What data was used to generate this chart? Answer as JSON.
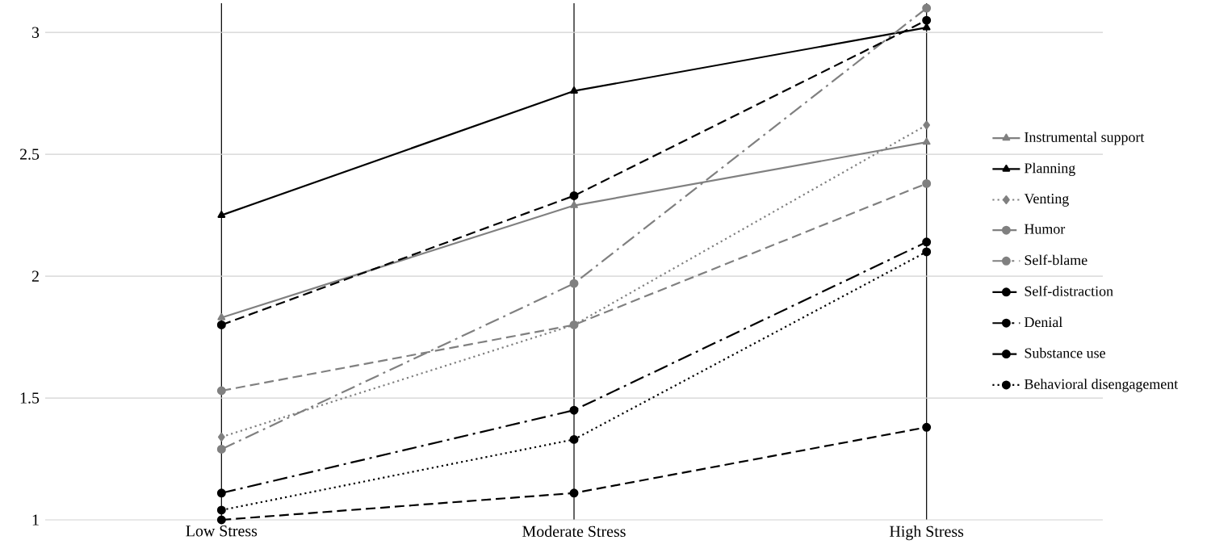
{
  "chart_data": {
    "type": "line",
    "categories": [
      "Low Stress",
      "Moderate Stress",
      "High Stress"
    ],
    "ylim": [
      1,
      3.12
    ],
    "yticks": [
      1,
      1.5,
      2,
      2.5,
      3
    ],
    "grid": true,
    "legend": "right",
    "series": [
      {
        "name": "Instrumental support",
        "color": "#808080",
        "marker": "triangle",
        "line_style": "solid",
        "values": [
          1.83,
          2.29,
          2.55
        ]
      },
      {
        "name": "Planning",
        "color": "#000000",
        "marker": "triangle",
        "line_style": "solid",
        "values": [
          2.25,
          2.76,
          3.02
        ]
      },
      {
        "name": "Venting",
        "color": "#808080",
        "marker": "diamond",
        "line_style": "dotted",
        "values": [
          1.34,
          1.8,
          2.62
        ]
      },
      {
        "name": "Humor",
        "color": "#808080",
        "marker": "circle",
        "line_style": "dashed",
        "values": [
          1.53,
          1.8,
          2.38
        ]
      },
      {
        "name": "Self-blame",
        "color": "#808080",
        "marker": "circle",
        "line_style": "dashdot",
        "values": [
          1.29,
          1.97,
          3.1
        ]
      },
      {
        "name": "Self-distraction",
        "color": "#000000",
        "marker": "circle",
        "line_style": "dashed",
        "values": [
          1.8,
          2.33,
          3.05
        ]
      },
      {
        "name": "Denial",
        "color": "#000000",
        "marker": "circle",
        "line_style": "dashdot",
        "values": [
          1.11,
          1.45,
          2.14
        ]
      },
      {
        "name": "Substance use",
        "color": "#000000",
        "marker": "circle",
        "line_style": "dashed",
        "values": [
          1.0,
          1.11,
          1.38
        ]
      },
      {
        "name": "Behavioral disengagement",
        "color": "#000000",
        "marker": "circle",
        "line_style": "dotted",
        "values": [
          1.04,
          1.33,
          2.1
        ]
      }
    ]
  }
}
